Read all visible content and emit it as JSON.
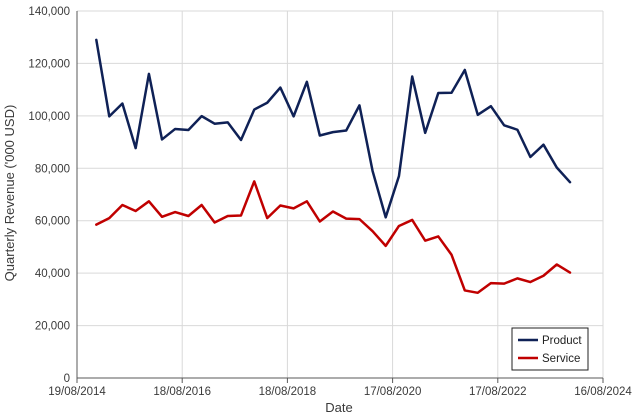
{
  "chart_data": {
    "type": "line",
    "xlabel": "Date",
    "ylabel": "Quarterly Revenue ('000 USD)",
    "xlim": [
      "2014-08-19",
      "2024-08-16"
    ],
    "ylim": [
      0,
      140000
    ],
    "y_ticks": [
      0,
      20000,
      40000,
      60000,
      80000,
      100000,
      120000,
      140000
    ],
    "y_tick_labels": [
      "0",
      "20,000",
      "40,000",
      "60,000",
      "80,000",
      "100,000",
      "120,000",
      "140,000"
    ],
    "x_ticks": [
      "2014-08-19",
      "2016-08-18",
      "2018-08-18",
      "2020-08-17",
      "2022-08-17",
      "2024-08-16"
    ],
    "x_tick_labels": [
      "19/08/2014",
      "18/08/2016",
      "18/08/2018",
      "17/08/2020",
      "17/08/2022",
      "16/08/2024"
    ],
    "grid": true,
    "legend_position": "bottom-right",
    "x": [
      "2014-12-31",
      "2015-03-31",
      "2015-06-30",
      "2015-09-30",
      "2015-12-31",
      "2016-03-31",
      "2016-06-30",
      "2016-09-30",
      "2016-12-31",
      "2017-03-31",
      "2017-06-30",
      "2017-09-30",
      "2017-12-31",
      "2018-03-31",
      "2018-06-30",
      "2018-09-30",
      "2018-12-31",
      "2019-03-31",
      "2019-06-30",
      "2019-09-30",
      "2019-12-31",
      "2020-03-31",
      "2020-06-30",
      "2020-09-30",
      "2020-12-31",
      "2021-03-31",
      "2021-06-30",
      "2021-09-30",
      "2021-12-31",
      "2022-03-31",
      "2022-06-30",
      "2022-09-30",
      "2022-12-31",
      "2023-03-31",
      "2023-06-30",
      "2023-09-30",
      "2023-12-31"
    ],
    "series": [
      {
        "name": "Product",
        "color": "#0f2156",
        "values": [
          129000,
          99800,
          104700,
          87700,
          116000,
          91000,
          95000,
          94600,
          99900,
          97000,
          97500,
          90800,
          102400,
          105000,
          110800,
          99800,
          113000,
          92500,
          93800,
          94400,
          104000,
          79000,
          61300,
          77000,
          115000,
          93500,
          108700,
          108800,
          117500,
          100400,
          103700,
          96400,
          94700,
          84300,
          89000,
          80300,
          74700
        ]
      },
      {
        "name": "Service",
        "color": "#c00000",
        "values": [
          58500,
          61000,
          66000,
          63700,
          67400,
          61500,
          63300,
          61800,
          66000,
          59300,
          61800,
          62000,
          75000,
          61000,
          65800,
          64700,
          67400,
          59700,
          63500,
          60800,
          60600,
          56000,
          50400,
          58000,
          60300,
          52400,
          54000,
          47000,
          33400,
          32500,
          36200,
          36000,
          38000,
          36600,
          39000,
          43300,
          40200
        ]
      }
    ]
  }
}
